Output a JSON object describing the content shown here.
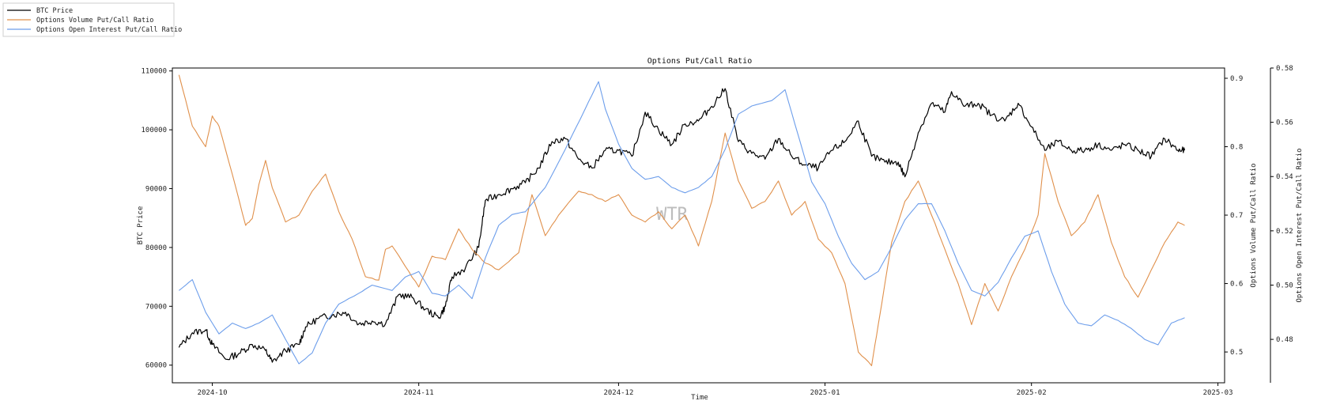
{
  "chart_data": {
    "type": "line",
    "title": "Options Put/Call Ratio",
    "xlabel": "Time",
    "watermark": "WTR",
    "legend_position": "top-left",
    "x_ticks": [
      "2024-10",
      "2024-11",
      "2024-12",
      "2025-01",
      "2025-02",
      "2025-03"
    ],
    "x_range": [
      "2024-09-25",
      "2025-03-02"
    ],
    "axes": {
      "left": {
        "label": "BTC Price",
        "range": [
          57000,
          110500
        ],
        "ticks": [
          60000,
          70000,
          80000,
          90000,
          100000,
          110000
        ]
      },
      "right1": {
        "label": "Options Volume Put/Call Ratio",
        "range": [
          0.455,
          0.915
        ],
        "ticks": [
          0.5,
          0.6,
          0.7,
          0.8,
          0.9
        ]
      },
      "right2": {
        "label": "Options Open Interest Put/Call Ratio",
        "range": [
          0.464,
          0.58
        ],
        "ticks": [
          0.48,
          0.5,
          0.52,
          0.54,
          0.56,
          0.58
        ]
      }
    },
    "series": [
      {
        "name": "BTC Price",
        "axis": "left",
        "color": "#000000",
        "points": [
          [
            "2024-09-26",
            63000
          ],
          [
            "2024-09-28",
            65500
          ],
          [
            "2024-09-30",
            66000
          ],
          [
            "2024-10-01",
            63500
          ],
          [
            "2024-10-03",
            61000
          ],
          [
            "2024-10-05",
            62000
          ],
          [
            "2024-10-07",
            63500
          ],
          [
            "2024-10-09",
            62500
          ],
          [
            "2024-10-10",
            60500
          ],
          [
            "2024-10-12",
            62500
          ],
          [
            "2024-10-14",
            63500
          ],
          [
            "2024-10-15",
            66500
          ],
          [
            "2024-10-17",
            68000
          ],
          [
            "2024-10-19",
            68500
          ],
          [
            "2024-10-21",
            69000
          ],
          [
            "2024-10-23",
            67000
          ],
          [
            "2024-10-25",
            67500
          ],
          [
            "2024-10-27",
            67000
          ],
          [
            "2024-10-29",
            72000
          ],
          [
            "2024-10-31",
            71500
          ],
          [
            "2024-11-02",
            69500
          ],
          [
            "2024-11-04",
            68000
          ],
          [
            "2024-11-05",
            70000
          ],
          [
            "2024-11-06",
            75000
          ],
          [
            "2024-11-08",
            76500
          ],
          [
            "2024-11-10",
            80000
          ],
          [
            "2024-11-11",
            88000
          ],
          [
            "2024-11-13",
            89000
          ],
          [
            "2024-11-15",
            90000
          ],
          [
            "2024-11-17",
            91000
          ],
          [
            "2024-11-19",
            93500
          ],
          [
            "2024-11-21",
            98000
          ],
          [
            "2024-11-23",
            98500
          ],
          [
            "2024-11-25",
            95000
          ],
          [
            "2024-11-27",
            93500
          ],
          [
            "2024-11-29",
            96500
          ],
          [
            "2024-12-01",
            96500
          ],
          [
            "2024-12-03",
            95500
          ],
          [
            "2024-12-05",
            103000
          ],
          [
            "2024-12-07",
            100000
          ],
          [
            "2024-12-09",
            97500
          ],
          [
            "2024-12-11",
            101000
          ],
          [
            "2024-12-13",
            101500
          ],
          [
            "2024-12-15",
            104000
          ],
          [
            "2024-12-17",
            107000
          ],
          [
            "2024-12-19",
            98000
          ],
          [
            "2024-12-21",
            96000
          ],
          [
            "2024-12-23",
            95000
          ],
          [
            "2024-12-25",
            98500
          ],
          [
            "2024-12-27",
            95500
          ],
          [
            "2024-12-29",
            94000
          ],
          [
            "2024-12-31",
            93500
          ],
          [
            "2025-01-02",
            96500
          ],
          [
            "2025-01-04",
            98000
          ],
          [
            "2025-01-06",
            101500
          ],
          [
            "2025-01-08",
            95500
          ],
          [
            "2025-01-10",
            94500
          ],
          [
            "2025-01-12",
            94500
          ],
          [
            "2025-01-13",
            92000
          ],
          [
            "2025-01-15",
            99500
          ],
          [
            "2025-01-17",
            104500
          ],
          [
            "2025-01-19",
            103000
          ],
          [
            "2025-01-20",
            106500
          ],
          [
            "2025-01-22",
            104000
          ],
          [
            "2025-01-24",
            104500
          ],
          [
            "2025-01-26",
            102500
          ],
          [
            "2025-01-28",
            101500
          ],
          [
            "2025-01-30",
            104500
          ],
          [
            "2025-02-01",
            100500
          ],
          [
            "2025-02-03",
            96500
          ],
          [
            "2025-02-05",
            98000
          ],
          [
            "2025-02-07",
            96500
          ],
          [
            "2025-02-09",
            96500
          ],
          [
            "2025-02-11",
            97500
          ],
          [
            "2025-02-13",
            96500
          ],
          [
            "2025-02-15",
            97500
          ],
          [
            "2025-02-17",
            96500
          ],
          [
            "2025-02-19",
            95500
          ],
          [
            "2025-02-21",
            98500
          ],
          [
            "2025-02-23",
            96500
          ],
          [
            "2025-02-24",
            96500
          ]
        ]
      },
      {
        "name": "Options Volume Put/Call Ratio",
        "axis": "right1",
        "color": "#e0904b",
        "points": [
          [
            "2024-09-26",
            0.905
          ],
          [
            "2024-09-28",
            0.83
          ],
          [
            "2024-09-30",
            0.8
          ],
          [
            "2024-10-01",
            0.845
          ],
          [
            "2024-10-02",
            0.83
          ],
          [
            "2024-10-04",
            0.76
          ],
          [
            "2024-10-06",
            0.685
          ],
          [
            "2024-10-07",
            0.695
          ],
          [
            "2024-10-08",
            0.745
          ],
          [
            "2024-10-09",
            0.78
          ],
          [
            "2024-10-10",
            0.74
          ],
          [
            "2024-10-12",
            0.69
          ],
          [
            "2024-10-14",
            0.7
          ],
          [
            "2024-10-16",
            0.735
          ],
          [
            "2024-10-18",
            0.76
          ],
          [
            "2024-10-20",
            0.705
          ],
          [
            "2024-10-22",
            0.665
          ],
          [
            "2024-10-24",
            0.61
          ],
          [
            "2024-10-26",
            0.605
          ],
          [
            "2024-10-27",
            0.65
          ],
          [
            "2024-10-28",
            0.655
          ],
          [
            "2024-10-30",
            0.625
          ],
          [
            "2024-11-01",
            0.595
          ],
          [
            "2024-11-03",
            0.64
          ],
          [
            "2024-11-05",
            0.635
          ],
          [
            "2024-11-07",
            0.68
          ],
          [
            "2024-11-09",
            0.65
          ],
          [
            "2024-11-11",
            0.63
          ],
          [
            "2024-11-13",
            0.62
          ],
          [
            "2024-11-16",
            0.645
          ],
          [
            "2024-11-18",
            0.73
          ],
          [
            "2024-11-20",
            0.67
          ],
          [
            "2024-11-22",
            0.7
          ],
          [
            "2024-11-25",
            0.735
          ],
          [
            "2024-11-27",
            0.73
          ],
          [
            "2024-11-29",
            0.72
          ],
          [
            "2024-12-01",
            0.73
          ],
          [
            "2024-12-03",
            0.7
          ],
          [
            "2024-12-05",
            0.69
          ],
          [
            "2024-12-07",
            0.705
          ],
          [
            "2024-12-09",
            0.68
          ],
          [
            "2024-12-11",
            0.7
          ],
          [
            "2024-12-13",
            0.655
          ],
          [
            "2024-12-15",
            0.72
          ],
          [
            "2024-12-17",
            0.82
          ],
          [
            "2024-12-19",
            0.75
          ],
          [
            "2024-12-21",
            0.71
          ],
          [
            "2024-12-23",
            0.72
          ],
          [
            "2024-12-25",
            0.75
          ],
          [
            "2024-12-27",
            0.7
          ],
          [
            "2024-12-29",
            0.72
          ],
          [
            "2024-12-31",
            0.665
          ],
          [
            "2025-01-02",
            0.645
          ],
          [
            "2025-01-04",
            0.6
          ],
          [
            "2025-01-06",
            0.5
          ],
          [
            "2025-01-08",
            0.48
          ],
          [
            "2025-01-09",
            0.54
          ],
          [
            "2025-01-11",
            0.66
          ],
          [
            "2025-01-13",
            0.72
          ],
          [
            "2025-01-15",
            0.75
          ],
          [
            "2025-01-17",
            0.7
          ],
          [
            "2025-01-19",
            0.65
          ],
          [
            "2025-01-21",
            0.6
          ],
          [
            "2025-01-23",
            0.54
          ],
          [
            "2025-01-25",
            0.6
          ],
          [
            "2025-01-27",
            0.56
          ],
          [
            "2025-01-29",
            0.61
          ],
          [
            "2025-01-31",
            0.65
          ],
          [
            "2025-02-02",
            0.7
          ],
          [
            "2025-02-03",
            0.79
          ],
          [
            "2025-02-05",
            0.72
          ],
          [
            "2025-02-07",
            0.67
          ],
          [
            "2025-02-09",
            0.69
          ],
          [
            "2025-02-11",
            0.73
          ],
          [
            "2025-02-13",
            0.66
          ],
          [
            "2025-02-15",
            0.61
          ],
          [
            "2025-02-17",
            0.58
          ],
          [
            "2025-02-19",
            0.62
          ],
          [
            "2025-02-21",
            0.66
          ],
          [
            "2025-02-23",
            0.69
          ],
          [
            "2025-02-24",
            0.685
          ]
        ]
      },
      {
        "name": "Options Open Interest Put/Call Ratio",
        "axis": "right2",
        "color": "#6d9eeb",
        "points": [
          [
            "2024-09-26",
            0.498
          ],
          [
            "2024-09-28",
            0.502
          ],
          [
            "2024-09-30",
            0.49
          ],
          [
            "2024-10-02",
            0.482
          ],
          [
            "2024-10-04",
            0.486
          ],
          [
            "2024-10-06",
            0.484
          ],
          [
            "2024-10-08",
            0.486
          ],
          [
            "2024-10-10",
            0.489
          ],
          [
            "2024-10-12",
            0.48
          ],
          [
            "2024-10-14",
            0.471
          ],
          [
            "2024-10-16",
            0.475
          ],
          [
            "2024-10-18",
            0.486
          ],
          [
            "2024-10-20",
            0.493
          ],
          [
            "2024-10-23",
            0.497
          ],
          [
            "2024-10-25",
            0.5
          ],
          [
            "2024-10-28",
            0.498
          ],
          [
            "2024-10-30",
            0.503
          ],
          [
            "2024-11-01",
            0.505
          ],
          [
            "2024-11-03",
            0.497
          ],
          [
            "2024-11-05",
            0.496
          ],
          [
            "2024-11-07",
            0.5
          ],
          [
            "2024-11-09",
            0.495
          ],
          [
            "2024-11-11",
            0.51
          ],
          [
            "2024-11-13",
            0.522
          ],
          [
            "2024-11-15",
            0.526
          ],
          [
            "2024-11-17",
            0.527
          ],
          [
            "2024-11-20",
            0.536
          ],
          [
            "2024-11-23",
            0.55
          ],
          [
            "2024-11-26",
            0.565
          ],
          [
            "2024-11-28",
            0.575
          ],
          [
            "2024-11-29",
            0.565
          ],
          [
            "2024-12-01",
            0.552
          ],
          [
            "2024-12-03",
            0.543
          ],
          [
            "2024-12-05",
            0.539
          ],
          [
            "2024-12-07",
            0.54
          ],
          [
            "2024-12-09",
            0.536
          ],
          [
            "2024-12-11",
            0.534
          ],
          [
            "2024-12-13",
            0.536
          ],
          [
            "2024-12-15",
            0.54
          ],
          [
            "2024-12-17",
            0.55
          ],
          [
            "2024-12-19",
            0.563
          ],
          [
            "2024-12-21",
            0.566
          ],
          [
            "2024-12-24",
            0.568
          ],
          [
            "2024-12-26",
            0.572
          ],
          [
            "2024-12-28",
            0.555
          ],
          [
            "2024-12-30",
            0.538
          ],
          [
            "2025-01-01",
            0.53
          ],
          [
            "2025-01-03",
            0.518
          ],
          [
            "2025-01-05",
            0.508
          ],
          [
            "2025-01-07",
            0.502
          ],
          [
            "2025-01-09",
            0.505
          ],
          [
            "2025-01-11",
            0.514
          ],
          [
            "2025-01-13",
            0.524
          ],
          [
            "2025-01-15",
            0.53
          ],
          [
            "2025-01-17",
            0.53
          ],
          [
            "2025-01-19",
            0.52
          ],
          [
            "2025-01-21",
            0.508
          ],
          [
            "2025-01-23",
            0.498
          ],
          [
            "2025-01-25",
            0.496
          ],
          [
            "2025-01-27",
            0.501
          ],
          [
            "2025-01-29",
            0.51
          ],
          [
            "2025-01-31",
            0.518
          ],
          [
            "2025-02-02",
            0.52
          ],
          [
            "2025-02-04",
            0.505
          ],
          [
            "2025-02-06",
            0.493
          ],
          [
            "2025-02-08",
            0.486
          ],
          [
            "2025-02-10",
            0.485
          ],
          [
            "2025-02-12",
            0.489
          ],
          [
            "2025-02-14",
            0.487
          ],
          [
            "2025-02-16",
            0.484
          ],
          [
            "2025-02-18",
            0.48
          ],
          [
            "2025-02-20",
            0.478
          ],
          [
            "2025-02-22",
            0.486
          ],
          [
            "2025-02-24",
            0.488
          ]
        ]
      }
    ]
  }
}
